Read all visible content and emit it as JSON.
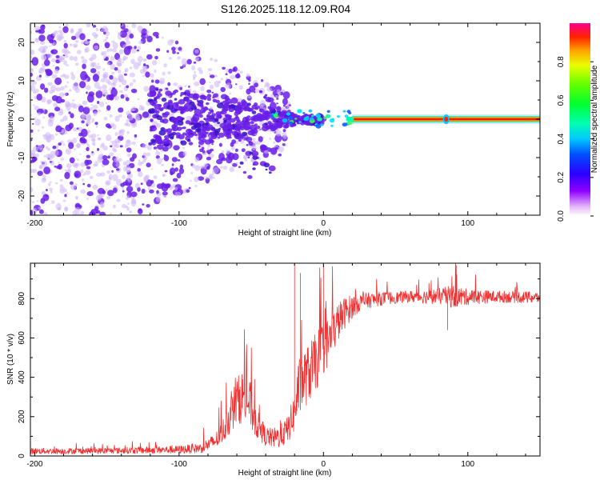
{
  "title": "S126.2025.118.12.09.R04",
  "colors": {
    "snr_line": "#f03030",
    "frame": "#000000",
    "scatter_main": "#6a1fe8",
    "scatter_light": "#cdb4f7"
  },
  "chart_data": [
    {
      "type": "heatmap",
      "name": "spectrogram",
      "xlabel": "Height of straight line (km)",
      "ylabel": "Frequency (Hz)",
      "xlim": [
        -203,
        150
      ],
      "ylim": [
        -25,
        25
      ],
      "xticks": [
        -200,
        -100,
        0,
        100
      ],
      "xtick_labels": [
        "-200",
        "-100",
        "0",
        "100"
      ],
      "yticks": [
        -20,
        -10,
        0,
        10,
        20
      ],
      "ytick_labels": [
        "-20",
        "-10",
        "0",
        "10",
        "20"
      ],
      "grid": false,
      "carrier_frequency_hz": 0,
      "carrier_start_km": 20,
      "carrier_end_km": 150,
      "colorbar": {
        "label": "Normalized spectral amplitude",
        "range": [
          0,
          1
        ],
        "ticks": [
          0.0,
          0.2,
          0.4,
          0.6,
          0.8
        ],
        "tick_labels": [
          "0.0",
          "0.2",
          "0.4",
          "0.6",
          "0.8"
        ]
      }
    },
    {
      "type": "line",
      "name": "snr",
      "xlabel": "Height of straight line (km)",
      "ylabel": "SNR (10 * v/v)",
      "xlim": [
        -203,
        150
      ],
      "ylim": [
        0,
        980
      ],
      "xticks": [
        -200,
        -100,
        0,
        100
      ],
      "xtick_labels": [
        "-200",
        "-100",
        "0",
        "100"
      ],
      "yticks": [
        0,
        200,
        400,
        600,
        800
      ],
      "ytick_labels": [
        "0",
        "200",
        "400",
        "600",
        "800"
      ],
      "grid": false,
      "series": [
        {
          "name": "SNR",
          "x": [
            -203,
            -180,
            -150,
            -120,
            -100,
            -85,
            -75,
            -70,
            -65,
            -60,
            -55,
            -50,
            -48,
            -45,
            -40,
            -35,
            -30,
            -25,
            -20,
            -18,
            -15,
            -10,
            -5,
            0,
            5,
            10,
            15,
            20,
            25,
            30,
            40,
            50,
            60,
            70,
            80,
            90,
            100,
            120,
            150
          ],
          "y": [
            25,
            25,
            27,
            30,
            32,
            40,
            75,
            120,
            200,
            280,
            310,
            250,
            200,
            150,
            100,
            90,
            100,
            130,
            220,
            320,
            380,
            420,
            480,
            550,
            600,
            680,
            730,
            760,
            780,
            790,
            800,
            805,
            810,
            810,
            812,
            810,
            808,
            810,
            805
          ],
          "noise_amplitude": [
            15,
            15,
            15,
            18,
            20,
            25,
            40,
            60,
            90,
            120,
            140,
            120,
            100,
            70,
            50,
            50,
            60,
            70,
            100,
            150,
            150,
            150,
            150,
            140,
            120,
            100,
            80,
            60,
            45,
            40,
            35,
            30,
            30,
            35,
            40,
            60,
            40,
            30,
            30
          ]
        }
      ]
    }
  ]
}
